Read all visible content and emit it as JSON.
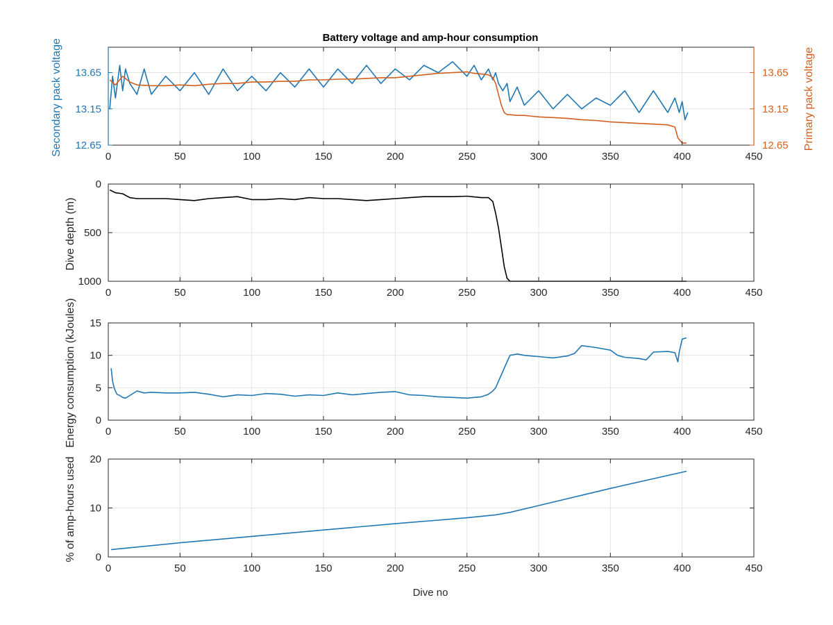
{
  "figure": {
    "title": "Battery voltage and amp-hour consumption",
    "xlabel": "Dive no"
  },
  "colors": {
    "blue": "#1f77b4",
    "orange": "#d35f1f",
    "black": "#000000",
    "grid": "#e3e3e3",
    "axis": "#262626"
  },
  "chart_data": [
    {
      "type": "line",
      "xlim": [
        0,
        450
      ],
      "x_ticks": [
        0,
        50,
        100,
        150,
        200,
        250,
        300,
        350,
        400,
        450
      ],
      "ylim": [
        12.65,
        14.0
      ],
      "ylabel": "Secondary pack voltage",
      "y_ticks": [
        12.65,
        13.15,
        13.65
      ],
      "y_tick_labels": [
        "12.65",
        "13.15",
        "13.65"
      ],
      "y2lim": [
        12.65,
        14.0
      ],
      "y2label": "Primary pack voltage",
      "y2_ticks": [
        12.65,
        13.15,
        13.65
      ],
      "y2_tick_labels": [
        "12.65",
        "13.15",
        "13.65"
      ],
      "grid": true,
      "series": [
        {
          "axis": "left",
          "color": "#1f77b4",
          "x": [
            1,
            3,
            5,
            8,
            10,
            12,
            15,
            20,
            25,
            30,
            40,
            50,
            60,
            70,
            80,
            90,
            100,
            110,
            120,
            130,
            140,
            150,
            160,
            170,
            180,
            190,
            200,
            210,
            220,
            230,
            240,
            250,
            255,
            260,
            265,
            268,
            270,
            272,
            275,
            278,
            280,
            285,
            290,
            300,
            310,
            320,
            330,
            340,
            350,
            360,
            370,
            380,
            390,
            395,
            398,
            400,
            402,
            404
          ],
          "y": [
            13.15,
            13.6,
            13.3,
            13.75,
            13.4,
            13.7,
            13.5,
            13.35,
            13.7,
            13.35,
            13.6,
            13.4,
            13.65,
            13.35,
            13.7,
            13.4,
            13.6,
            13.4,
            13.65,
            13.45,
            13.7,
            13.45,
            13.7,
            13.5,
            13.75,
            13.5,
            13.7,
            13.55,
            13.75,
            13.65,
            13.8,
            13.6,
            13.75,
            13.55,
            13.7,
            13.55,
            13.65,
            13.5,
            13.4,
            13.5,
            13.25,
            13.45,
            13.2,
            13.4,
            13.15,
            13.35,
            13.15,
            13.3,
            13.2,
            13.4,
            13.1,
            13.4,
            13.1,
            13.3,
            13.1,
            13.25,
            13.0,
            13.1
          ]
        },
        {
          "axis": "right",
          "color": "#d35f1f",
          "x": [
            1,
            5,
            10,
            15,
            20,
            30,
            40,
            50,
            60,
            70,
            80,
            90,
            100,
            110,
            120,
            130,
            140,
            150,
            160,
            170,
            180,
            190,
            200,
            210,
            220,
            230,
            240,
            250,
            255,
            260,
            265,
            268,
            270,
            272,
            274,
            276,
            278,
            280,
            285,
            290,
            300,
            310,
            320,
            330,
            340,
            350,
            360,
            370,
            380,
            390,
            395,
            397,
            400,
            403
          ],
          "y": [
            13.55,
            13.48,
            13.6,
            13.52,
            13.48,
            13.47,
            13.47,
            13.48,
            13.47,
            13.49,
            13.5,
            13.5,
            13.52,
            13.52,
            13.53,
            13.53,
            13.55,
            13.55,
            13.56,
            13.56,
            13.57,
            13.58,
            13.58,
            13.6,
            13.62,
            13.64,
            13.65,
            13.66,
            13.64,
            13.63,
            13.62,
            13.58,
            13.5,
            13.35,
            13.2,
            13.1,
            13.07,
            13.07,
            13.06,
            13.06,
            13.04,
            13.03,
            13.02,
            13.0,
            12.99,
            12.97,
            12.96,
            12.95,
            12.94,
            12.93,
            12.9,
            12.75,
            12.68,
            12.68
          ]
        }
      ]
    },
    {
      "type": "line",
      "xlim": [
        0,
        450
      ],
      "x_ticks": [
        0,
        50,
        100,
        150,
        200,
        250,
        300,
        350,
        400,
        450
      ],
      "ylim": [
        0,
        1000
      ],
      "y_reversed": true,
      "ylabel": "Dive depth (m)",
      "y_ticks": [
        0,
        500,
        1000
      ],
      "y_tick_labels": [
        "0",
        "500",
        "1000"
      ],
      "grid": true,
      "series": [
        {
          "color": "#000000",
          "x": [
            1,
            5,
            10,
            15,
            20,
            30,
            40,
            50,
            60,
            70,
            80,
            90,
            100,
            110,
            120,
            130,
            140,
            150,
            160,
            170,
            180,
            190,
            200,
            210,
            220,
            230,
            240,
            250,
            260,
            265,
            268,
            270,
            272,
            274,
            276,
            278,
            280,
            290,
            300,
            320,
            340,
            360,
            380,
            400,
            403
          ],
          "y": [
            60,
            90,
            100,
            140,
            150,
            150,
            150,
            160,
            170,
            150,
            140,
            130,
            160,
            160,
            150,
            160,
            140,
            150,
            150,
            160,
            170,
            160,
            150,
            140,
            130,
            130,
            130,
            125,
            140,
            140,
            180,
            300,
            450,
            650,
            850,
            970,
            1000,
            1000,
            1000,
            1000,
            1000,
            1000,
            1000,
            1000,
            1000
          ]
        }
      ]
    },
    {
      "type": "line",
      "xlim": [
        0,
        450
      ],
      "x_ticks": [
        0,
        50,
        100,
        150,
        200,
        250,
        300,
        350,
        400,
        450
      ],
      "ylim": [
        0,
        15
      ],
      "ylabel": "Energy consumption (kJoules)",
      "y_ticks": [
        0,
        5,
        10,
        15
      ],
      "y_tick_labels": [
        "0",
        "5",
        "10",
        "15"
      ],
      "grid": true,
      "series": [
        {
          "color": "#1f77b4",
          "x": [
            2,
            3,
            4,
            5,
            6,
            8,
            10,
            12,
            15,
            20,
            25,
            30,
            40,
            50,
            60,
            70,
            80,
            90,
            100,
            110,
            120,
            130,
            140,
            150,
            160,
            170,
            180,
            190,
            200,
            210,
            220,
            230,
            240,
            250,
            255,
            260,
            265,
            268,
            270,
            272,
            275,
            278,
            280,
            285,
            290,
            300,
            310,
            320,
            325,
            330,
            340,
            350,
            355,
            360,
            370,
            375,
            380,
            390,
            395,
            397,
            398,
            400,
            403
          ],
          "y": [
            8.0,
            6.0,
            5.0,
            4.5,
            4.0,
            3.8,
            3.5,
            3.4,
            3.8,
            4.5,
            4.2,
            4.3,
            4.2,
            4.2,
            4.3,
            4.0,
            3.6,
            3.9,
            3.8,
            4.1,
            4.0,
            3.7,
            3.9,
            3.8,
            4.2,
            3.9,
            4.1,
            4.3,
            4.4,
            3.9,
            3.8,
            3.6,
            3.5,
            3.4,
            3.5,
            3.6,
            4.0,
            4.5,
            5.0,
            6.0,
            7.5,
            9.0,
            10.0,
            10.2,
            10.0,
            9.8,
            9.6,
            9.9,
            10.3,
            11.5,
            11.2,
            10.8,
            10.0,
            9.7,
            9.5,
            9.3,
            10.5,
            10.6,
            10.4,
            9.0,
            10.5,
            12.5,
            12.7
          ]
        }
      ]
    },
    {
      "type": "line",
      "xlim": [
        0,
        450
      ],
      "x_ticks": [
        0,
        50,
        100,
        150,
        200,
        250,
        300,
        350,
        400,
        450
      ],
      "x_tick_labels": [
        "0",
        "50",
        "100",
        "150",
        "200",
        "250",
        "300",
        "350",
        "400",
        "450"
      ],
      "xlabel": "Dive no",
      "ylim": [
        0,
        20
      ],
      "ylabel": "% of amp-hours used",
      "y_ticks": [
        0,
        10,
        20
      ],
      "y_tick_labels": [
        "0",
        "10",
        "20"
      ],
      "grid": true,
      "series": [
        {
          "color": "#1f77b4",
          "x": [
            2,
            50,
            100,
            150,
            200,
            250,
            270,
            280,
            300,
            350,
            403
          ],
          "y": [
            1.5,
            2.9,
            4.2,
            5.5,
            6.8,
            8.0,
            8.6,
            9.1,
            10.5,
            14.0,
            17.5
          ]
        }
      ]
    }
  ]
}
